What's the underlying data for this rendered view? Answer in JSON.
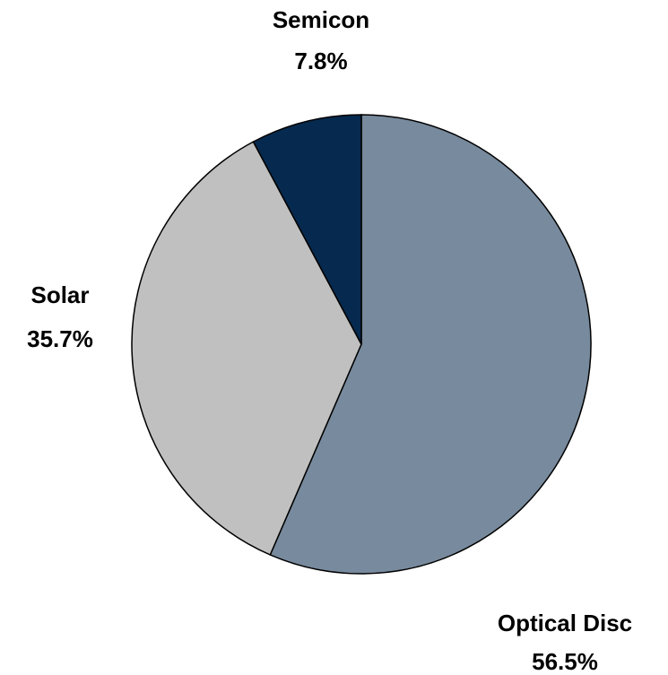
{
  "chart_data": {
    "type": "pie",
    "categories": [
      "Optical Disc",
      "Solar",
      "Semicon"
    ],
    "values": [
      56.5,
      35.7,
      7.8
    ],
    "value_labels": [
      "56.5%",
      "35.7%",
      "7.8%"
    ],
    "colors": [
      "#788a9d",
      "#c0c0c0",
      "#062a4f"
    ]
  }
}
